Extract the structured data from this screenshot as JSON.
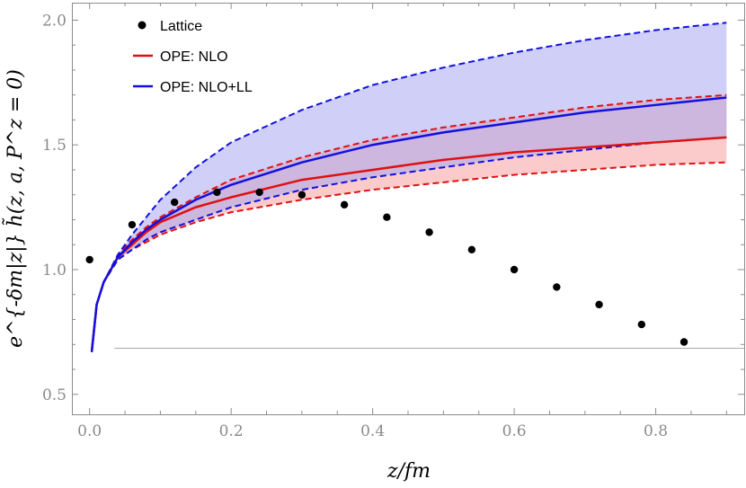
{
  "chart_data": {
    "type": "line",
    "xlabel": "z/fm",
    "ylabel": "e^{-δm|z|} h̃(z, a, P^z = 0)",
    "xlim": [
      -0.025,
      0.925
    ],
    "ylim": [
      0.42,
      2.07
    ],
    "xticks": [
      0.0,
      0.2,
      0.4,
      0.6,
      0.8
    ],
    "xtick_labels": [
      "0.0",
      "0.2",
      "0.4",
      "0.6",
      "0.8"
    ],
    "yticks": [
      0.5,
      1.0,
      1.5,
      2.0
    ],
    "ytick_labels": [
      "0.5",
      "1.0",
      "1.5",
      "2.0"
    ],
    "legend_position": "top-left",
    "legend": [
      {
        "label": "Lattice",
        "marker": "dot",
        "color": "#000000"
      },
      {
        "label": "OPE: NLO",
        "marker": "line",
        "color": "#e01010"
      },
      {
        "label": "OPE: NLO+LL",
        "marker": "line",
        "color": "#1010e0"
      }
    ],
    "lattice": {
      "name": "Lattice",
      "x": [
        0.0,
        0.06,
        0.12,
        0.18,
        0.24,
        0.3,
        0.36,
        0.42,
        0.48,
        0.54,
        0.6,
        0.66,
        0.72,
        0.78,
        0.84
      ],
      "y": [
        1.04,
        1.18,
        1.27,
        1.31,
        1.31,
        1.3,
        1.26,
        1.21,
        1.15,
        1.08,
        1.0,
        0.93,
        0.86,
        0.78,
        0.71
      ]
    },
    "bands": [
      {
        "name": "OPE: NLO",
        "color": "#e01010",
        "fill": "#f8a0a0",
        "x": [
          0.003,
          0.01,
          0.02,
          0.04,
          0.06,
          0.08,
          0.1,
          0.15,
          0.2,
          0.3,
          0.4,
          0.5,
          0.6,
          0.7,
          0.8,
          0.9
        ],
        "central": [
          0.67,
          0.86,
          0.95,
          1.05,
          1.1,
          1.15,
          1.19,
          1.25,
          1.29,
          1.36,
          1.4,
          1.44,
          1.47,
          1.49,
          1.51,
          1.53
        ],
        "upper": [
          0.67,
          0.86,
          0.95,
          1.06,
          1.12,
          1.17,
          1.21,
          1.29,
          1.36,
          1.45,
          1.52,
          1.57,
          1.61,
          1.65,
          1.68,
          1.7
        ],
        "lower": [
          0.67,
          0.86,
          0.95,
          1.04,
          1.08,
          1.11,
          1.14,
          1.19,
          1.23,
          1.28,
          1.32,
          1.35,
          1.38,
          1.4,
          1.42,
          1.43
        ]
      },
      {
        "name": "OPE: NLO+LL",
        "color": "#1010e0",
        "fill": "#a8a8f0",
        "x": [
          0.003,
          0.01,
          0.02,
          0.04,
          0.06,
          0.08,
          0.1,
          0.15,
          0.2,
          0.3,
          0.4,
          0.5,
          0.6,
          0.7,
          0.8,
          0.9
        ],
        "central": [
          0.67,
          0.86,
          0.95,
          1.05,
          1.11,
          1.16,
          1.2,
          1.28,
          1.34,
          1.43,
          1.5,
          1.55,
          1.59,
          1.63,
          1.66,
          1.69
        ],
        "upper": [
          0.67,
          0.86,
          0.95,
          1.06,
          1.14,
          1.21,
          1.28,
          1.41,
          1.51,
          1.64,
          1.74,
          1.81,
          1.87,
          1.92,
          1.96,
          1.99
        ],
        "lower": [
          0.67,
          0.86,
          0.95,
          1.04,
          1.08,
          1.12,
          1.15,
          1.2,
          1.25,
          1.32,
          1.37,
          1.41,
          1.45,
          1.48,
          1.51,
          1.53
        ]
      }
    ],
    "reference_line": {
      "y": 0.685,
      "x_from": 0.035,
      "x_to": 0.925
    }
  }
}
